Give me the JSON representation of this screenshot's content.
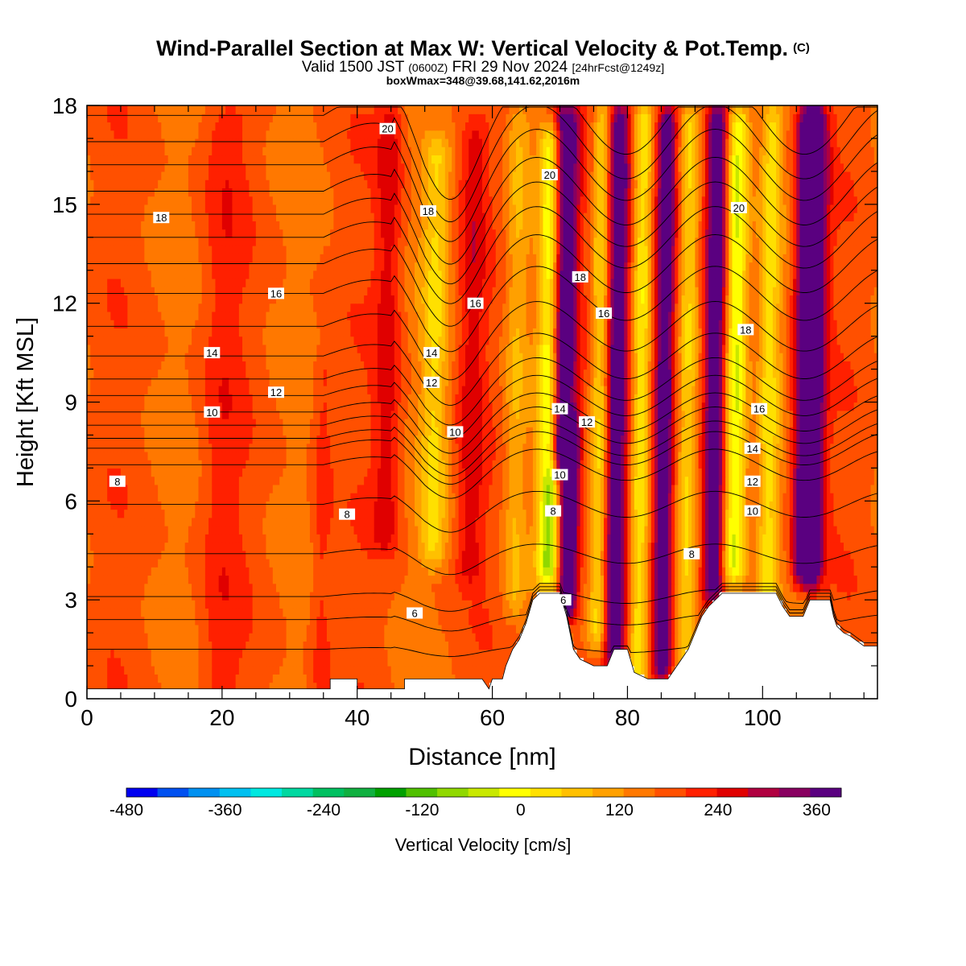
{
  "header": {
    "title": "Wind-Parallel Section at Max W: Vertical Velocity & Pot.Temp.",
    "copyright_mark": "(C)",
    "valid_prefix": "Valid 1500 JST",
    "valid_utc": "(0600Z)",
    "valid_date": "FRI 29 Nov 2024",
    "forecast": "[24hrFcst@1249z]",
    "box_info": "boxWmax=348@39.68,141.62,2016m"
  },
  "chart_data": {
    "type": "heatmap",
    "xlabel": "Distance [nm]",
    "ylabel": "Height [Kft MSL]",
    "xlim": [
      0,
      117
    ],
    "ylim": [
      0,
      18
    ],
    "x_ticks": [
      0,
      20,
      40,
      60,
      80,
      100
    ],
    "y_ticks": [
      0,
      3,
      6,
      9,
      12,
      15,
      18
    ],
    "colorbar": {
      "label": "Vertical Velocity [cm/s]",
      "range": [
        -480,
        390
      ],
      "step": 30,
      "tick_values": [
        -480,
        -360,
        -240,
        -120,
        0,
        120,
        240,
        360
      ],
      "colors": [
        "#0000f0",
        "#0050f0",
        "#0090f0",
        "#00c0f0",
        "#00e8e0",
        "#00d8a0",
        "#00c060",
        "#10b040",
        "#00a000",
        "#50c000",
        "#90d800",
        "#c8e800",
        "#ffff00",
        "#ffe000",
        "#ffc000",
        "#ffa000",
        "#ff7800",
        "#ff5000",
        "#ff2000",
        "#e00000",
        "#b00040",
        "#880060",
        "#5a0080"
      ]
    },
    "w_bands": [
      {
        "x": 70.5,
        "y0": 7.5,
        "y1": 17.5,
        "amp": 230,
        "w": 2.0
      },
      {
        "x": 71.5,
        "y0": 3.0,
        "y1": 8.0,
        "amp": 260,
        "w": 1.3
      },
      {
        "x": 68.5,
        "y0": 4.0,
        "y1": 17.0,
        "amp": -180,
        "w": 1.6
      },
      {
        "x": 76.0,
        "y0": 2.0,
        "y1": 17.5,
        "amp": -120,
        "w": 1.4
      },
      {
        "x": 78.5,
        "y0": 1.5,
        "y1": 17.5,
        "amp": 190,
        "w": 1.6
      },
      {
        "x": 82.0,
        "y0": 1.0,
        "y1": 17.5,
        "amp": -110,
        "w": 1.3
      },
      {
        "x": 85.5,
        "y0": 1.0,
        "y1": 17.5,
        "amp": 210,
        "w": 1.5
      },
      {
        "x": 89.0,
        "y0": 1.5,
        "y1": 17.5,
        "amp": -90,
        "w": 1.4
      },
      {
        "x": 93.0,
        "y0": 3.5,
        "y1": 17.5,
        "amp": 190,
        "w": 1.5
      },
      {
        "x": 96.0,
        "y0": 4.0,
        "y1": 17.5,
        "amp": -170,
        "w": 1.7
      },
      {
        "x": 107.0,
        "y0": 4.0,
        "y1": 17.5,
        "amp": 310,
        "w": 2.0
      },
      {
        "x": 101.0,
        "y0": 3.0,
        "y1": 17.5,
        "amp": -100,
        "w": 1.5
      },
      {
        "x": 51.5,
        "y0": 4.5,
        "y1": 16.5,
        "amp": -90,
        "w": 2.0
      },
      {
        "x": 57.0,
        "y0": 4.0,
        "y1": 17.0,
        "amp": 60,
        "w": 2.0
      },
      {
        "x": 63.5,
        "y0": 3.0,
        "y1": 17.5,
        "amp": -60,
        "w": 1.6
      },
      {
        "x": 44.5,
        "y0": 5.0,
        "y1": 17.5,
        "amp": 70,
        "w": 2.0
      },
      {
        "x": 20.0,
        "y0": 0.5,
        "y1": 17.5,
        "amp": 35,
        "w": 3.0
      },
      {
        "x": 35.0,
        "y0": 0.5,
        "y1": 10.0,
        "amp": 40,
        "w": 1.5
      }
    ],
    "theta_labels": [
      {
        "x": 44.5,
        "y": 17.3,
        "text": "20"
      },
      {
        "x": 68.5,
        "y": 15.9,
        "text": "20"
      },
      {
        "x": 96.5,
        "y": 14.9,
        "text": "20"
      },
      {
        "x": 11.0,
        "y": 14.6,
        "text": "18"
      },
      {
        "x": 50.5,
        "y": 14.8,
        "text": "18"
      },
      {
        "x": 73.0,
        "y": 12.8,
        "text": "18"
      },
      {
        "x": 97.5,
        "y": 11.2,
        "text": "18"
      },
      {
        "x": 28.0,
        "y": 12.3,
        "text": "16"
      },
      {
        "x": 57.5,
        "y": 12.0,
        "text": "16"
      },
      {
        "x": 76.5,
        "y": 11.7,
        "text": "16"
      },
      {
        "x": 99.5,
        "y": 8.8,
        "text": "16"
      },
      {
        "x": 18.5,
        "y": 10.5,
        "text": "14"
      },
      {
        "x": 51.0,
        "y": 10.5,
        "text": "14"
      },
      {
        "x": 70.0,
        "y": 8.8,
        "text": "14"
      },
      {
        "x": 98.5,
        "y": 7.6,
        "text": "14"
      },
      {
        "x": 28.0,
        "y": 9.3,
        "text": "12"
      },
      {
        "x": 51.0,
        "y": 9.6,
        "text": "12"
      },
      {
        "x": 74.0,
        "y": 8.4,
        "text": "12"
      },
      {
        "x": 98.5,
        "y": 6.6,
        "text": "12"
      },
      {
        "x": 18.5,
        "y": 8.7,
        "text": "10"
      },
      {
        "x": 54.5,
        "y": 8.1,
        "text": "10"
      },
      {
        "x": 70.0,
        "y": 6.8,
        "text": "10"
      },
      {
        "x": 98.5,
        "y": 5.7,
        "text": "10"
      },
      {
        "x": 4.5,
        "y": 6.6,
        "text": "8"
      },
      {
        "x": 38.5,
        "y": 5.6,
        "text": "8"
      },
      {
        "x": 69.0,
        "y": 5.7,
        "text": "8"
      },
      {
        "x": 89.5,
        "y": 4.4,
        "text": "8"
      },
      {
        "x": 48.5,
        "y": 2.6,
        "text": "6"
      },
      {
        "x": 70.5,
        "y": 3.0,
        "text": "6"
      }
    ]
  }
}
